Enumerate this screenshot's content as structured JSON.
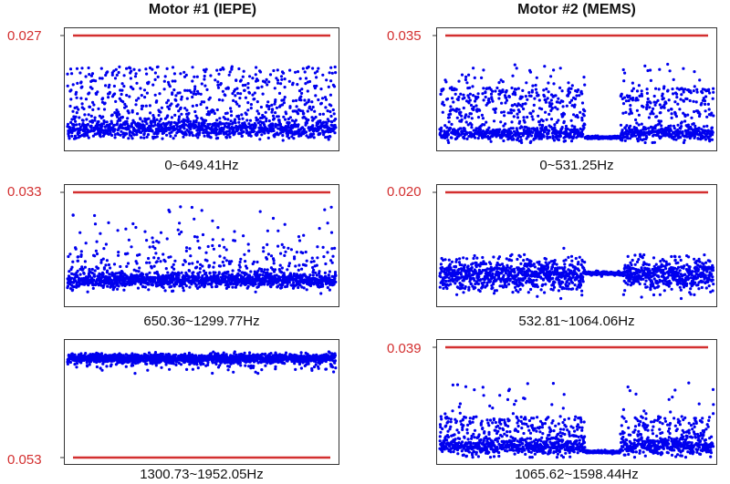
{
  "columns": [
    {
      "title": "Motor #1 (IEPE)"
    },
    {
      "title": "Motor #2 (MEMS)"
    }
  ],
  "colors": {
    "points": "#0000ee",
    "threshold": "#d32f2f",
    "frame": "#333333"
  },
  "chart_data": [
    {
      "type": "scatter",
      "title": "",
      "column": "Motor #1 (IEPE)",
      "xlabel": "0~649.41Hz",
      "threshold_label": "0.027",
      "threshold_position": "top",
      "pattern": "dense-bottom-spread",
      "seed": 11
    },
    {
      "type": "scatter",
      "title": "",
      "column": "Motor #2 (MEMS)",
      "xlabel": "0~531.25Hz",
      "threshold_label": "0.035",
      "threshold_position": "top",
      "pattern": "gap-bottom",
      "seed": 23
    },
    {
      "type": "scatter",
      "title": "",
      "column": "Motor #1 (IEPE)",
      "xlabel": "650.36~1299.77Hz",
      "threshold_label": "0.033",
      "threshold_position": "top",
      "pattern": "band-middle",
      "seed": 37
    },
    {
      "type": "scatter",
      "title": "",
      "column": "Motor #2 (MEMS)",
      "xlabel": "532.81~1064.06Hz",
      "threshold_label": "0.020",
      "threshold_position": "top",
      "pattern": "gap-middle",
      "seed": 41
    },
    {
      "type": "scatter",
      "title": "",
      "column": "Motor #1 (IEPE)",
      "xlabel": "1300.73~1952.05Hz",
      "threshold_label": "0.053",
      "threshold_position": "bottom",
      "pattern": "band-top",
      "seed": 53
    },
    {
      "type": "scatter",
      "title": "",
      "column": "Motor #2 (MEMS)",
      "xlabel": "1065.62~1598.44Hz",
      "threshold_label": "0.039",
      "threshold_position": "top",
      "pattern": "gap-bottom-low",
      "seed": 67
    }
  ]
}
